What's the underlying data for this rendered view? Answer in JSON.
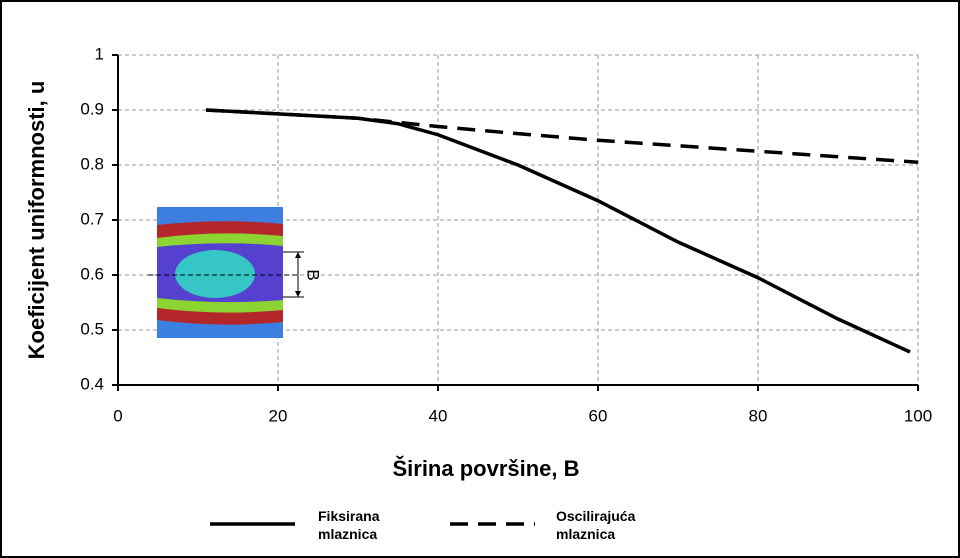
{
  "chart_data": {
    "type": "line",
    "x_label": "Širina površine, B",
    "y_label": "Koeficijent uniformnosti, u",
    "inset_label": "B",
    "xlim": [
      0,
      100
    ],
    "xticks": [
      0,
      20,
      40,
      60,
      80,
      100
    ],
    "ylim": [
      0.4,
      1
    ],
    "yticks": [
      0.4,
      0.5,
      0.6,
      0.7,
      0.8,
      0.9,
      1
    ],
    "grid": true,
    "series": [
      {
        "name": "Fiksirana mlaznica",
        "color": "#000000",
        "line_style": "solid",
        "x": [
          11,
          20,
          30,
          35,
          40,
          50,
          60,
          70,
          80,
          90,
          99
        ],
        "values": [
          0.9,
          0.893,
          0.885,
          0.875,
          0.855,
          0.8,
          0.735,
          0.66,
          0.595,
          0.52,
          0.46
        ]
      },
      {
        "name": "Oscilirajuća mlaznica",
        "color": "#000000",
        "line_style": "dashed",
        "x": [
          11,
          20,
          30,
          40,
          50,
          60,
          70,
          80,
          90,
          100
        ],
        "values": [
          0.9,
          0.893,
          0.885,
          0.87,
          0.857,
          0.845,
          0.835,
          0.825,
          0.815,
          0.805
        ]
      }
    ]
  }
}
